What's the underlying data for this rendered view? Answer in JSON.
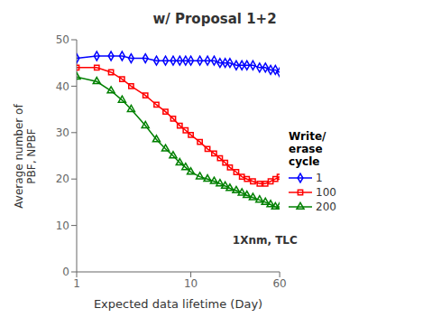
{
  "chart_data": {
    "type": "line",
    "title": "w/ Proposal 1+2",
    "x_label": "Expected data lifetime (Day)",
    "y_label": "Average number of\nPBF, NPBF",
    "annotation": "1Xnm, TLC",
    "legend_title": "Write/\nerase\ncycle",
    "log": "x",
    "grid": false,
    "legend": "right",
    "xlim": [
      1,
      60
    ],
    "xticks": [
      1,
      10,
      60
    ],
    "ylim": [
      0,
      50
    ],
    "yticks": [
      0,
      10,
      20,
      30,
      40,
      50
    ],
    "series": [
      {
        "name": "1",
        "color": "#0000ff",
        "marker": "diamond",
        "x": [
          1,
          1.5,
          2,
          2.5,
          3,
          4,
          5,
          6,
          7,
          8,
          9,
          10,
          12,
          14,
          16,
          18,
          20,
          22,
          25,
          28,
          31,
          35,
          40,
          45,
          50,
          55,
          60
        ],
        "values": [
          46.0,
          46.5,
          46.5,
          46.5,
          46.0,
          46.0,
          45.5,
          45.5,
          45.5,
          45.5,
          45.5,
          45.5,
          45.5,
          45.5,
          45.5,
          45.0,
          45.0,
          45.0,
          44.5,
          44.5,
          44.5,
          44.5,
          44.0,
          44.0,
          43.5,
          43.5,
          43.0
        ]
      },
      {
        "name": "100",
        "color": "#ff0000",
        "marker": "square",
        "x": [
          1,
          1.5,
          2,
          2.5,
          3,
          4,
          5,
          6,
          7,
          8,
          9,
          10,
          12,
          14,
          16,
          18,
          20,
          22,
          25,
          28,
          31,
          35,
          40,
          45,
          50,
          55,
          60
        ],
        "values": [
          44.0,
          44.0,
          43.0,
          41.5,
          40.0,
          38.0,
          36.0,
          34.5,
          33.0,
          31.5,
          30.5,
          29.5,
          28.0,
          26.5,
          25.5,
          24.5,
          23.5,
          22.5,
          21.5,
          20.5,
          20.0,
          19.5,
          19.0,
          19.0,
          19.5,
          20.0,
          20.5
        ]
      },
      {
        "name": "200",
        "color": "#008000",
        "marker": "triangle",
        "x": [
          1,
          1.5,
          2,
          2.5,
          3,
          4,
          5,
          6,
          7,
          8,
          9,
          10,
          12,
          14,
          16,
          18,
          20,
          22,
          25,
          28,
          31,
          35,
          40,
          45,
          50,
          55,
          60
        ],
        "values": [
          42.0,
          41.0,
          39.0,
          37.0,
          35.0,
          31.5,
          28.5,
          26.5,
          25.0,
          23.5,
          22.5,
          21.5,
          20.5,
          20.0,
          19.5,
          19.0,
          18.5,
          18.0,
          17.5,
          17.0,
          16.5,
          16.0,
          15.5,
          15.0,
          14.5,
          14.0,
          14.0
        ]
      }
    ]
  }
}
